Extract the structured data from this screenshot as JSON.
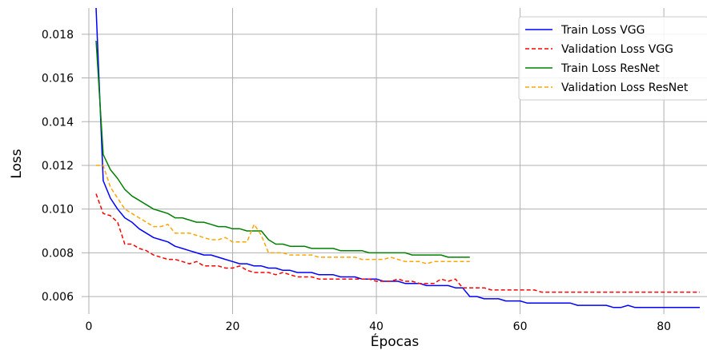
{
  "chart_data": {
    "type": "line",
    "title": "",
    "xlabel": "Épocas",
    "ylabel": "Loss",
    "xlim": [
      -1,
      86
    ],
    "ylim": [
      0.0052,
      0.0192
    ],
    "xticks": [
      0,
      20,
      40,
      60,
      80
    ],
    "xtick_labels": [
      "0",
      "20",
      "40",
      "60",
      "80"
    ],
    "yticks": [
      0.006,
      0.008,
      0.01,
      0.012,
      0.014,
      0.016,
      0.018
    ],
    "ytick_labels": [
      "0.006",
      "0.008",
      "0.010",
      "0.012",
      "0.014",
      "0.016",
      "0.018"
    ],
    "grid": true,
    "legend_position": "top-right",
    "series": [
      {
        "name": "Train Loss VGG",
        "color": "#0000ff",
        "style": "solid",
        "x": [
          1,
          2,
          3,
          4,
          5,
          6,
          7,
          8,
          9,
          10,
          11,
          12,
          13,
          14,
          15,
          16,
          17,
          18,
          19,
          20,
          21,
          22,
          23,
          24,
          25,
          26,
          27,
          28,
          29,
          30,
          31,
          32,
          33,
          34,
          35,
          36,
          37,
          38,
          39,
          40,
          41,
          42,
          43,
          44,
          45,
          46,
          47,
          48,
          49,
          50,
          51,
          52,
          53,
          54,
          55,
          56,
          57,
          58,
          59,
          60,
          61,
          62,
          63,
          64,
          65,
          66,
          67,
          68,
          69,
          70,
          71,
          72,
          73,
          74,
          75,
          76,
          77,
          78,
          79,
          80,
          81,
          82,
          83,
          84,
          85
        ],
        "values": [
          0.0192,
          0.0113,
          0.0105,
          0.01,
          0.0096,
          0.0094,
          0.0091,
          0.0089,
          0.0087,
          0.0086,
          0.0085,
          0.0083,
          0.0082,
          0.0081,
          0.008,
          0.0079,
          0.0079,
          0.0078,
          0.0077,
          0.0076,
          0.0075,
          0.0075,
          0.0074,
          0.0074,
          0.0073,
          0.0073,
          0.0072,
          0.0072,
          0.0071,
          0.0071,
          0.0071,
          0.007,
          0.007,
          0.007,
          0.0069,
          0.0069,
          0.0069,
          0.0068,
          0.0068,
          0.0068,
          0.0067,
          0.0067,
          0.0067,
          0.0066,
          0.0066,
          0.0066,
          0.0065,
          0.0065,
          0.0065,
          0.0065,
          0.0064,
          0.0064,
          0.006,
          0.006,
          0.0059,
          0.0059,
          0.0059,
          0.0058,
          0.0058,
          0.0058,
          0.0057,
          0.0057,
          0.0057,
          0.0057,
          0.0057,
          0.0057,
          0.0057,
          0.0056,
          0.0056,
          0.0056,
          0.0056,
          0.0056,
          0.0055,
          0.0055,
          0.0056,
          0.0055,
          0.0055,
          0.0055,
          0.0055,
          0.0055,
          0.0055,
          0.0055,
          0.0055,
          0.0055,
          0.0055
        ]
      },
      {
        "name": "Validation Loss VGG",
        "color": "#ff0000",
        "style": "dashed",
        "x": [
          1,
          2,
          3,
          4,
          5,
          6,
          7,
          8,
          9,
          10,
          11,
          12,
          13,
          14,
          15,
          16,
          17,
          18,
          19,
          20,
          21,
          22,
          23,
          24,
          25,
          26,
          27,
          28,
          29,
          30,
          31,
          32,
          33,
          34,
          35,
          36,
          37,
          38,
          39,
          40,
          41,
          42,
          43,
          44,
          45,
          46,
          47,
          48,
          49,
          50,
          51,
          52,
          53,
          54,
          55,
          56,
          57,
          58,
          59,
          60,
          61,
          62,
          63,
          64,
          65,
          66,
          67,
          68,
          69,
          70,
          71,
          72,
          73,
          74,
          75,
          76,
          77,
          78,
          79,
          80,
          81,
          82,
          83,
          84,
          85
        ],
        "values": [
          0.0107,
          0.0098,
          0.0097,
          0.0094,
          0.0084,
          0.0084,
          0.0082,
          0.0081,
          0.0079,
          0.0078,
          0.0077,
          0.0077,
          0.0076,
          0.0075,
          0.0076,
          0.0074,
          0.0074,
          0.0074,
          0.0073,
          0.0073,
          0.0074,
          0.0072,
          0.0071,
          0.0071,
          0.0071,
          0.007,
          0.0071,
          0.007,
          0.0069,
          0.0069,
          0.0069,
          0.0068,
          0.0068,
          0.0068,
          0.0068,
          0.0068,
          0.0068,
          0.0068,
          0.0068,
          0.0067,
          0.0067,
          0.0067,
          0.0068,
          0.0067,
          0.0067,
          0.0066,
          0.0066,
          0.0066,
          0.0068,
          0.0067,
          0.0068,
          0.0064,
          0.0064,
          0.0064,
          0.0064,
          0.0063,
          0.0063,
          0.0063,
          0.0063,
          0.0063,
          0.0063,
          0.0063,
          0.0062,
          0.0062,
          0.0062,
          0.0062,
          0.0062,
          0.0062,
          0.0062,
          0.0062,
          0.0062,
          0.0062,
          0.0062,
          0.0062,
          0.0062,
          0.0062,
          0.0062,
          0.0062,
          0.0062,
          0.0062,
          0.0062,
          0.0062,
          0.0062,
          0.0062,
          0.0062
        ]
      },
      {
        "name": "Train Loss ResNet",
        "color": "#008000",
        "style": "solid",
        "x": [
          1,
          2,
          3,
          4,
          5,
          6,
          7,
          8,
          9,
          10,
          11,
          12,
          13,
          14,
          15,
          16,
          17,
          18,
          19,
          20,
          21,
          22,
          23,
          24,
          25,
          26,
          27,
          28,
          29,
          30,
          31,
          32,
          33,
          34,
          35,
          36,
          37,
          38,
          39,
          40,
          41,
          42,
          43,
          44,
          45,
          46,
          47,
          48,
          49,
          50,
          51,
          52,
          53
        ],
        "values": [
          0.0177,
          0.0125,
          0.0118,
          0.0114,
          0.0109,
          0.0106,
          0.0104,
          0.0102,
          0.01,
          0.0099,
          0.0098,
          0.0096,
          0.0096,
          0.0095,
          0.0094,
          0.0094,
          0.0093,
          0.0092,
          0.0092,
          0.0091,
          0.0091,
          0.009,
          0.009,
          0.009,
          0.0086,
          0.0084,
          0.0084,
          0.0083,
          0.0083,
          0.0083,
          0.0082,
          0.0082,
          0.0082,
          0.0082,
          0.0081,
          0.0081,
          0.0081,
          0.0081,
          0.008,
          0.008,
          0.008,
          0.008,
          0.008,
          0.008,
          0.0079,
          0.0079,
          0.0079,
          0.0079,
          0.0079,
          0.0078,
          0.0078,
          0.0078,
          0.0078
        ]
      },
      {
        "name": "Validation Loss ResNet",
        "color": "#ffa500",
        "style": "dashed",
        "x": [
          1,
          2,
          3,
          4,
          5,
          6,
          7,
          8,
          9,
          10,
          11,
          12,
          13,
          14,
          15,
          16,
          17,
          18,
          19,
          20,
          21,
          22,
          23,
          24,
          25,
          26,
          27,
          28,
          29,
          30,
          31,
          32,
          33,
          34,
          35,
          36,
          37,
          38,
          39,
          40,
          41,
          42,
          43,
          44,
          45,
          46,
          47,
          48,
          49,
          50,
          51,
          52,
          53
        ],
        "values": [
          0.012,
          0.012,
          0.011,
          0.0105,
          0.01,
          0.0098,
          0.0096,
          0.0094,
          0.0092,
          0.0092,
          0.0093,
          0.0089,
          0.0089,
          0.0089,
          0.0088,
          0.0087,
          0.0086,
          0.0086,
          0.0087,
          0.0085,
          0.0085,
          0.0085,
          0.0093,
          0.0088,
          0.008,
          0.008,
          0.008,
          0.0079,
          0.0079,
          0.0079,
          0.0079,
          0.0078,
          0.0078,
          0.0078,
          0.0078,
          0.0078,
          0.0078,
          0.0077,
          0.0077,
          0.0077,
          0.0077,
          0.0078,
          0.0077,
          0.0076,
          0.0076,
          0.0076,
          0.0075,
          0.0076,
          0.0076,
          0.0076,
          0.0076,
          0.0076,
          0.0076
        ]
      }
    ]
  }
}
